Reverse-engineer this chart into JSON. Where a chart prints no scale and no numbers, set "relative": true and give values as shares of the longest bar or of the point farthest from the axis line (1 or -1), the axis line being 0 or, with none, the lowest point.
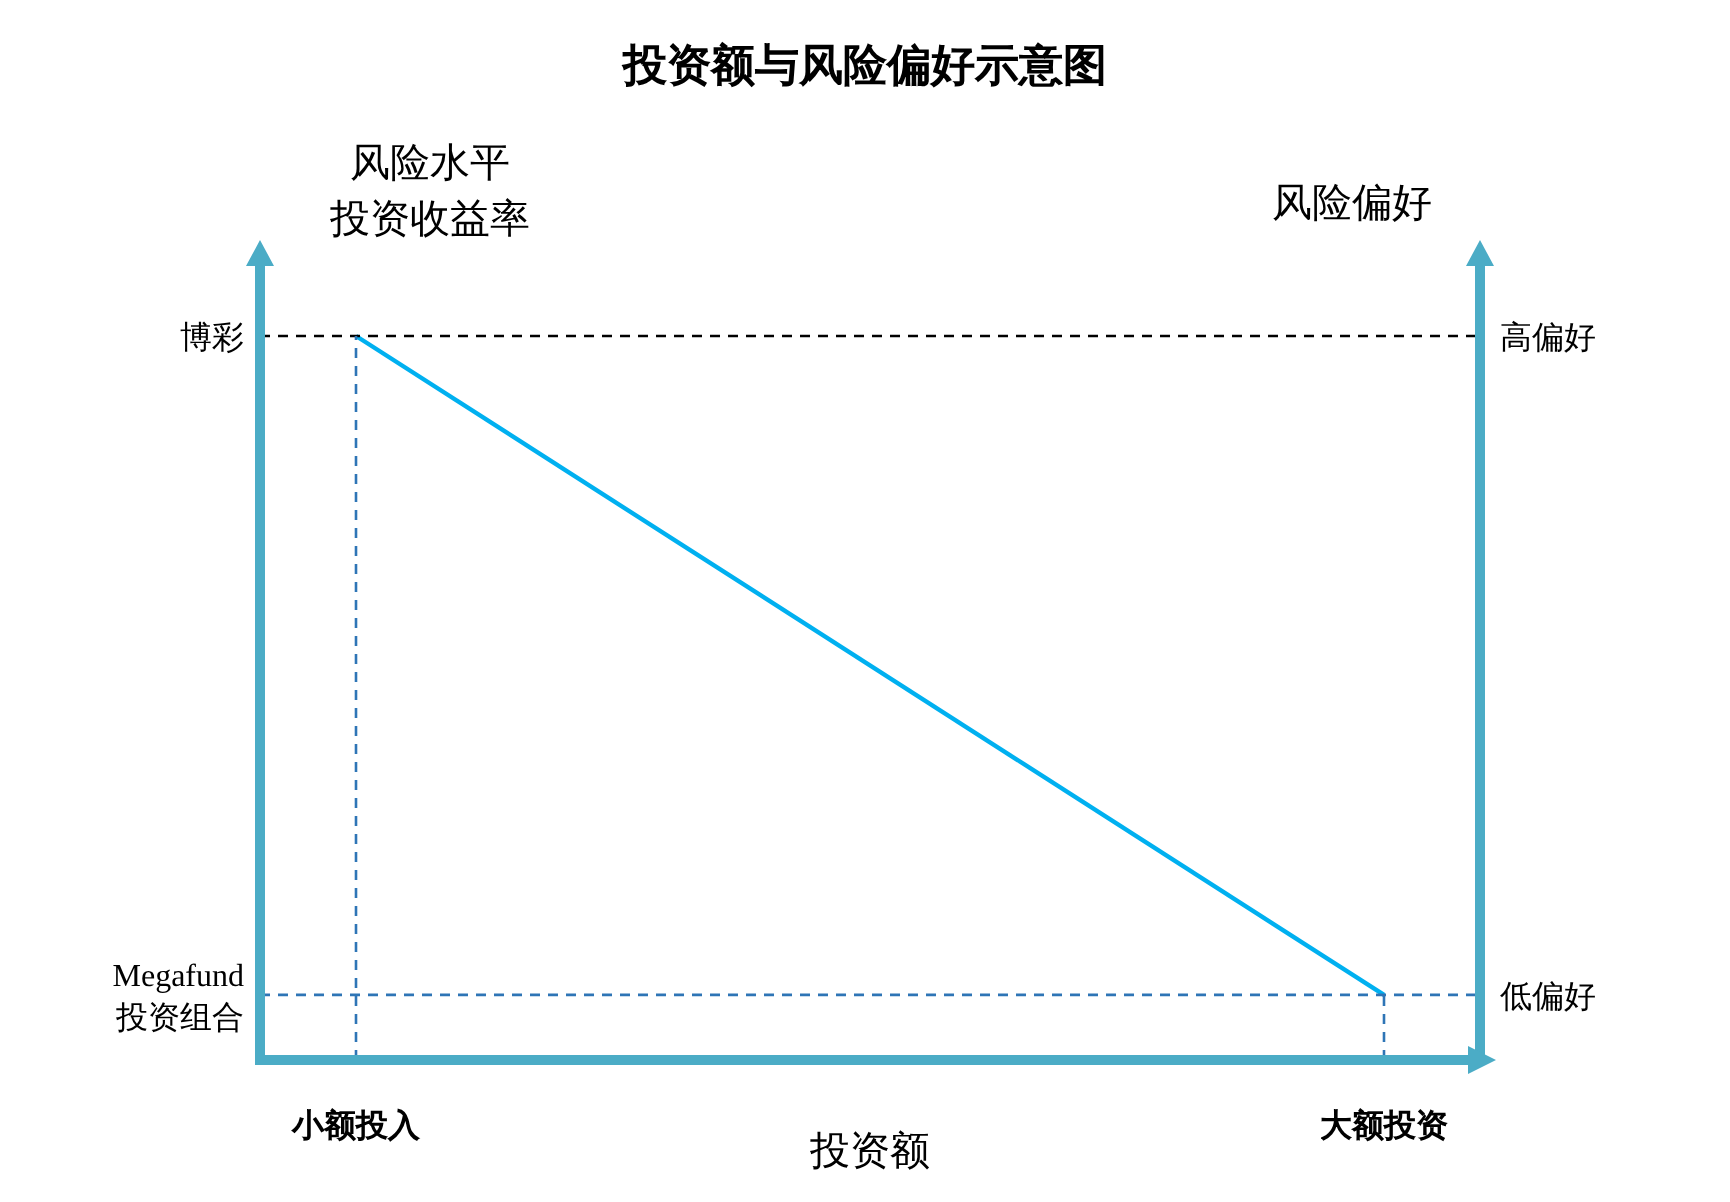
{
  "chart_data": {
    "type": "line",
    "relative": true,
    "title": "投资额与风险偏好示意图",
    "xlabel": "投资额",
    "ylabel": "风险水平投资收益率",
    "y2label": "风险偏好",
    "categories": [
      "小额投入",
      "大额投资"
    ],
    "series": [
      {
        "color": "#00b0f0",
        "values": [
          1,
          0.09
        ]
      }
    ],
    "ref_lines": [
      {
        "axis": "y",
        "value": 1,
        "label": "博彩",
        "color": "#000000",
        "line_style": "dashed"
      },
      {
        "axis": "y",
        "value": 0.09,
        "label": "Megafund\n投资组合",
        "color": "#2e75b6",
        "line_style": "dashed"
      },
      {
        "axis": "x",
        "value": "小额投入",
        "color": "#2e75b6",
        "line_style": "dashed"
      },
      {
        "axis": "x",
        "value": "大额投资",
        "color": "#2e75b6",
        "line_style": "dashed"
      }
    ],
    "annotations": [
      "高偏好",
      "低偏好"
    ]
  }
}
